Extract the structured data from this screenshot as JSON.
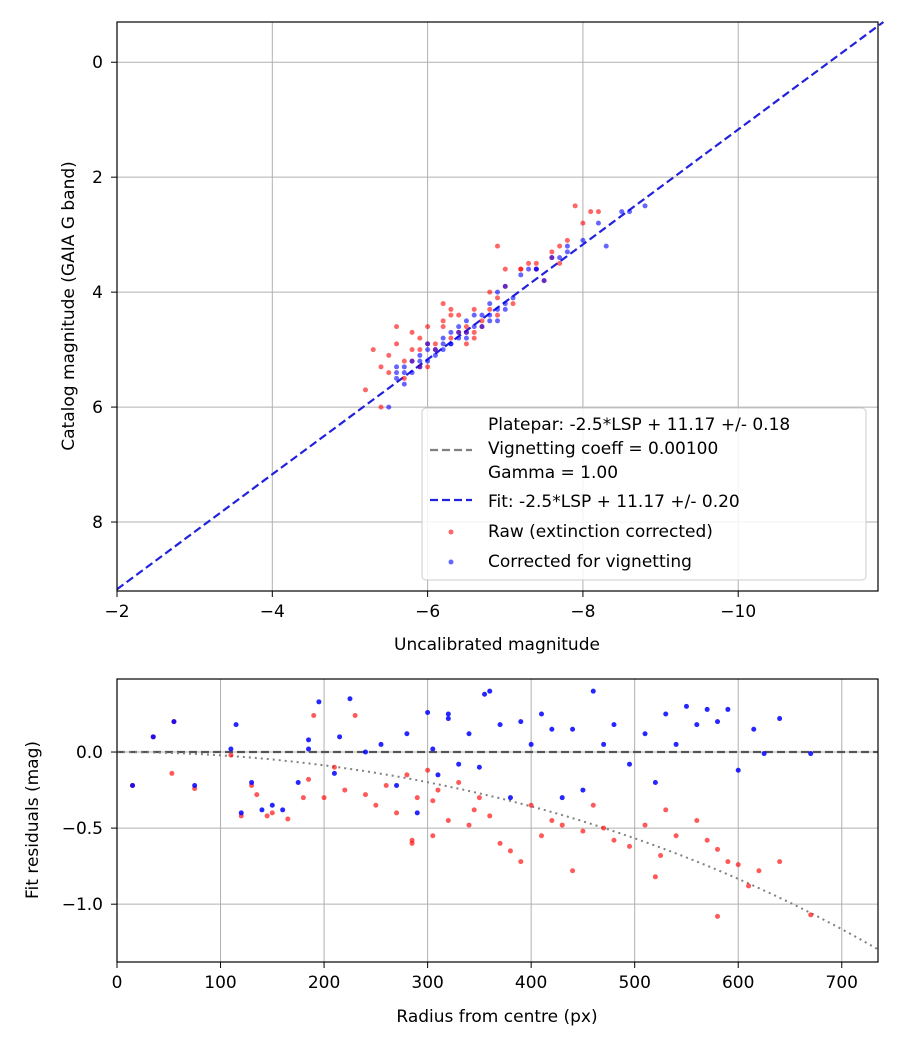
{
  "chart_data": [
    {
      "type": "scatter",
      "xlabel": "Uncalibrated magnitude",
      "ylabel": "Catalog magnitude (GAIA G band)",
      "xlim": [
        -2,
        -11.8
      ],
      "ylim": [
        9.2,
        -0.7
      ],
      "xticks": [
        -2,
        -4,
        -6,
        -8,
        -10
      ],
      "xtick_labels": [
        "−2",
        "−4",
        "−6",
        "−8",
        "−10"
      ],
      "yticks": [
        0,
        2,
        4,
        6,
        8
      ],
      "ytick_labels": [
        "0",
        "2",
        "4",
        "6",
        "8"
      ],
      "grid": true,
      "legend": {
        "placement": "lower-right",
        "entries": [
          {
            "label": "Platepar: -2.5*LSP + 11.17 +/- 0.18",
            "kind": "none"
          },
          {
            "label": "Vignetting coeff = 0.00100",
            "kind": "dashed-line",
            "color": "#808080"
          },
          {
            "label": "Gamma = 1.00",
            "kind": "none"
          },
          {
            "label": "Fit: -2.5*LSP + 11.17 +/- 0.20",
            "kind": "dashed-line",
            "color": "#2222dd"
          },
          {
            "label": "Raw (extinction corrected)",
            "kind": "marker",
            "color": "#ff0000"
          },
          {
            "label": "Corrected for vignetting",
            "kind": "marker",
            "color": "#0000ff"
          }
        ]
      },
      "fit_line": {
        "slope": 1.0,
        "intercept": 11.17,
        "color": "#2222dd"
      },
      "series": [
        {
          "name": "Raw (extinction corrected)",
          "color": "#ff0000",
          "x": [
            -5.2,
            -5.4,
            -5.5,
            -5.6,
            -5.7,
            -5.8,
            -5.9,
            -6.0,
            -6.1,
            -6.2,
            -6.3,
            -6.4,
            -6.5,
            -6.6,
            -6.7,
            -6.8,
            -6.9,
            -7.0,
            -7.2,
            -7.4,
            -7.6,
            -7.8,
            -8.0,
            -8.2,
            -5.3,
            -5.6,
            -5.9,
            -6.2,
            -6.5,
            -6.8,
            -7.1,
            -7.5,
            -5.5,
            -5.8,
            -6.1,
            -6.4,
            -6.7,
            -7.0,
            -7.3,
            -7.7,
            -8.1,
            -5.7,
            -6.0,
            -6.3,
            -6.6,
            -6.9,
            -7.2,
            -7.6,
            -5.4,
            -6.0,
            -6.6,
            -7.4,
            -7.9,
            -5.8,
            -6.2,
            -6.5,
            -6.9,
            -7.7,
            -5.9,
            -6.3
          ],
          "y": [
            5.7,
            5.3,
            5.1,
            4.9,
            5.2,
            4.7,
            5.0,
            4.6,
            4.9,
            4.5,
            4.8,
            4.4,
            4.7,
            4.3,
            4.5,
            4.3,
            4.1,
            3.9,
            3.6,
            3.6,
            3.3,
            3.1,
            2.8,
            2.6,
            5.0,
            4.6,
            4.8,
            4.6,
            4.9,
            4.0,
            4.2,
            3.8,
            5.4,
            5.2,
            5.0,
            4.7,
            4.6,
            3.6,
            3.5,
            3.2,
            2.6,
            5.5,
            4.9,
            4.4,
            4.8,
            4.4,
            3.6,
            3.4,
            6.0,
            5.3,
            4.7,
            3.5,
            2.5,
            5.0,
            4.2,
            4.6,
            3.2,
            3.5,
            5.3,
            4.3
          ]
        },
        {
          "name": "Corrected for vignetting",
          "color": "#0000ff",
          "x": [
            -5.5,
            -5.6,
            -5.7,
            -5.8,
            -5.9,
            -6.0,
            -6.1,
            -6.2,
            -6.3,
            -6.4,
            -6.5,
            -6.6,
            -6.7,
            -6.8,
            -6.9,
            -7.0,
            -7.2,
            -7.4,
            -7.6,
            -7.8,
            -8.0,
            -8.2,
            -8.5,
            -8.8,
            -5.6,
            -5.9,
            -6.2,
            -6.5,
            -6.8,
            -7.1,
            -7.5,
            -5.7,
            -6.0,
            -6.3,
            -6.6,
            -6.9,
            -7.3,
            -7.7,
            -8.3,
            -5.8,
            -6.1,
            -6.4,
            -6.7,
            -7.0,
            -5.9,
            -6.2,
            -6.5,
            -6.8,
            -7.4,
            -5.6,
            -6.0,
            -6.4,
            -7.0,
            -7.8,
            -8.6,
            -5.7,
            -6.3,
            -6.9
          ],
          "y": [
            6.0,
            5.5,
            5.3,
            5.2,
            5.1,
            4.9,
            5.0,
            4.8,
            4.7,
            4.6,
            4.5,
            4.4,
            4.4,
            4.2,
            4.0,
            3.9,
            3.7,
            3.6,
            3.4,
            3.2,
            3.1,
            2.8,
            2.6,
            2.5,
            5.4,
            5.3,
            5.0,
            4.8,
            4.5,
            4.1,
            3.8,
            5.6,
            5.2,
            4.9,
            4.6,
            4.3,
            3.6,
            3.4,
            3.2,
            5.4,
            5.1,
            4.8,
            4.6,
            4.3,
            5.2,
            4.9,
            4.7,
            4.4,
            3.6,
            5.3,
            5.0,
            4.7,
            4.2,
            3.3,
            2.6,
            5.4,
            4.9,
            4.5
          ]
        }
      ]
    },
    {
      "type": "scatter",
      "xlabel": "Radius from centre (px)",
      "ylabel": "Fit residuals (mag)",
      "xlim": [
        0,
        735
      ],
      "ylim": [
        -1.38,
        0.48
      ],
      "xticks": [
        0,
        100,
        200,
        300,
        400,
        500,
        600,
        700
      ],
      "xtick_labels": [
        "0",
        "100",
        "200",
        "300",
        "400",
        "500",
        "600",
        "700"
      ],
      "yticks": [
        0.0,
        -0.5,
        -1.0
      ],
      "ytick_labels": [
        "0.0",
        "−0.5",
        "−1.0"
      ],
      "grid": true,
      "zero_line": {
        "y": 0,
        "color": "#555555",
        "style": "dashed"
      },
      "vignetting_curve": {
        "coeff": 0.001,
        "color": "#808080",
        "style": "dotted"
      },
      "series": [
        {
          "name": "Raw (extinction corrected)",
          "color": "#ff0000",
          "x": [
            15,
            35,
            53,
            55,
            75,
            110,
            120,
            130,
            135,
            145,
            150,
            165,
            180,
            185,
            190,
            200,
            210,
            220,
            230,
            240,
            250,
            260,
            270,
            280,
            285,
            290,
            300,
            305,
            310,
            320,
            330,
            340,
            350,
            360,
            370,
            380,
            390,
            400,
            410,
            420,
            430,
            440,
            450,
            460,
            470,
            480,
            495,
            510,
            520,
            530,
            540,
            560,
            570,
            580,
            590,
            600,
            610,
            620,
            640,
            670,
            580,
            525,
            305,
            285,
            345
          ],
          "x_note": "approx",
          "y": [
            -0.22,
            0.1,
            -0.14,
            0.2,
            -0.24,
            -0.02,
            -0.42,
            -0.22,
            -0.28,
            -0.42,
            -0.4,
            -0.44,
            -0.3,
            -0.18,
            0.24,
            -0.3,
            -0.1,
            -0.25,
            0.24,
            -0.28,
            -0.35,
            -0.22,
            -0.4,
            -0.15,
            -0.58,
            -0.3,
            -0.12,
            -0.55,
            -0.25,
            -0.45,
            -0.2,
            -0.48,
            -0.3,
            -0.42,
            -0.6,
            -0.65,
            -0.72,
            -0.35,
            -0.55,
            -0.45,
            -0.48,
            -0.78,
            -0.52,
            -0.35,
            -0.5,
            -0.58,
            -0.62,
            -0.48,
            -0.82,
            -0.38,
            -0.55,
            -0.45,
            -0.58,
            -0.64,
            -0.72,
            -0.74,
            -0.88,
            -0.78,
            -0.72,
            -1.07,
            -1.08,
            -0.68,
            -0.32,
            -0.6,
            -0.38
          ]
        },
        {
          "name": "Corrected for vignetting",
          "color": "#0000ff",
          "x": [
            15,
            35,
            55,
            75,
            110,
            120,
            130,
            140,
            150,
            160,
            175,
            185,
            195,
            210,
            215,
            225,
            240,
            255,
            270,
            280,
            290,
            300,
            305,
            310,
            320,
            330,
            340,
            350,
            360,
            370,
            380,
            390,
            400,
            410,
            420,
            430,
            440,
            450,
            460,
            470,
            480,
            495,
            510,
            520,
            530,
            540,
            550,
            560,
            570,
            580,
            590,
            600,
            615,
            625,
            640,
            670,
            115,
            185,
            320,
            355
          ],
          "y": [
            -0.22,
            0.1,
            0.2,
            -0.22,
            0.02,
            -0.4,
            -0.2,
            -0.38,
            -0.35,
            -0.38,
            -0.2,
            0.02,
            0.33,
            -0.14,
            0.1,
            0.35,
            0.0,
            0.05,
            -0.22,
            0.12,
            -0.4,
            0.26,
            0.02,
            -0.15,
            0.25,
            -0.08,
            0.12,
            -0.1,
            0.4,
            0.18,
            -0.3,
            0.2,
            0.05,
            0.25,
            0.15,
            -0.3,
            0.15,
            -0.25,
            0.4,
            0.05,
            0.18,
            -0.08,
            0.12,
            -0.2,
            0.25,
            0.05,
            0.3,
            0.18,
            0.28,
            0.2,
            0.28,
            -0.12,
            0.15,
            -0.01,
            0.22,
            -0.01,
            0.18,
            0.08,
            0.22,
            0.38
          ]
        }
      ]
    }
  ]
}
